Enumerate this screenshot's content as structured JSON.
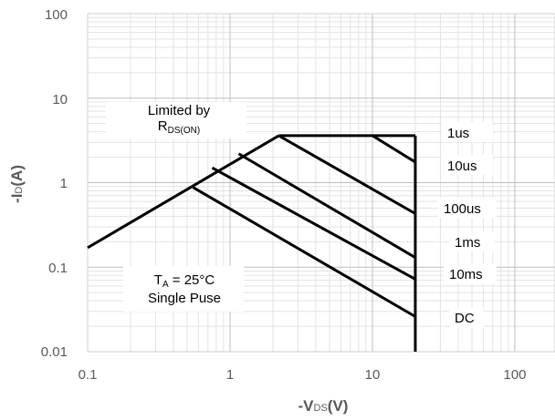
{
  "chart_data": {
    "type": "line",
    "title": "",
    "xlabel": {
      "main": "-V",
      "sub": "DS",
      "unit": "(V)"
    },
    "ylabel": {
      "main": "-I",
      "sub": "D",
      "unit": "(A)"
    },
    "x_scale": "log",
    "y_scale": "log",
    "xlim": [
      0.1,
      100
    ],
    "ylim": [
      0.01,
      100
    ],
    "x_ticks": [
      "0.1",
      "1",
      "10",
      "100"
    ],
    "y_ticks": [
      "0.01",
      "0.1",
      "1",
      "10",
      "100"
    ],
    "grid": true,
    "line_color": "#000000",
    "annotations": {
      "limited_line1": "Limited by",
      "limited_main": "R",
      "limited_sub": "DS(ON)",
      "ta_main": "T",
      "ta_sub": "A",
      "ta_rest": " = 25°C",
      "pulse": "Single Puse"
    },
    "rds_on_line": [
      [
        0.1,
        0.17
      ],
      [
        2.2,
        3.6
      ]
    ],
    "current_limit": 3.6,
    "vds_limit": 20,
    "series": [
      {
        "name": "1us",
        "values": [
          [
            10,
            3.6
          ],
          [
            20,
            1.75
          ]
        ]
      },
      {
        "name": "10us",
        "values": [
          [
            2.2,
            3.6
          ],
          [
            20,
            0.43
          ]
        ]
      },
      {
        "name": "100us",
        "values": [
          [
            1.15,
            2.2
          ],
          [
            20,
            0.13
          ]
        ]
      },
      {
        "name": "1ms",
        "values": [
          [
            0.75,
            1.5
          ],
          [
            20,
            0.072
          ]
        ]
      },
      {
        "name": "10ms",
        "values": [
          [
            0.55,
            0.88
          ],
          [
            20,
            0.026
          ]
        ]
      },
      {
        "name": "DC",
        "values": [
          [
            20,
            3.6
          ],
          [
            20,
            0.01
          ]
        ]
      }
    ]
  }
}
